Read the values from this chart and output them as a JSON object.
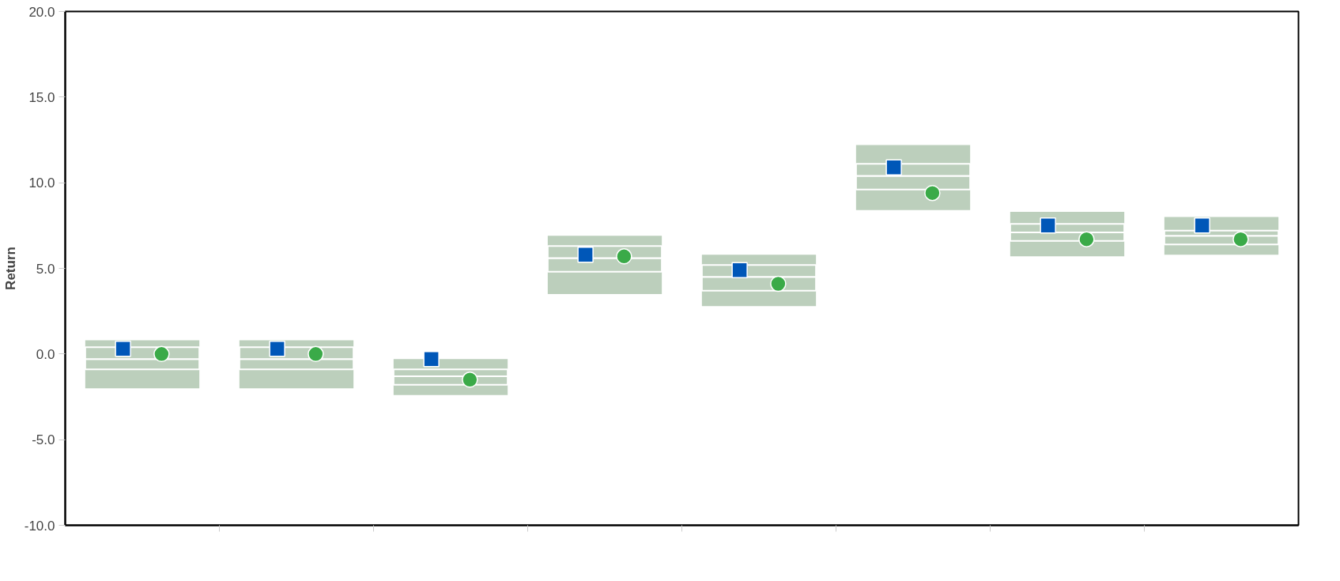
{
  "chart_data": {
    "type": "box",
    "ylabel": "Return",
    "categories": [
      null,
      null,
      null,
      null,
      null,
      null,
      null,
      null
    ],
    "color": "#bccfbc",
    "boxes": [
      {
        "low": -2.0,
        "q1": -0.9,
        "median": -0.3,
        "q3": 0.4,
        "high": 0.8
      },
      {
        "low": -2.0,
        "q1": -0.9,
        "median": -0.3,
        "q3": 0.4,
        "high": 0.8
      },
      {
        "low": -2.4,
        "q1": -1.8,
        "median": -1.3,
        "q3": -0.9,
        "high": -0.3
      },
      {
        "low": 3.5,
        "q1": 4.8,
        "median": 5.6,
        "q3": 6.3,
        "high": 6.9
      },
      {
        "low": 2.8,
        "q1": 3.7,
        "median": 4.5,
        "q3": 5.2,
        "high": 5.8
      },
      {
        "low": 8.4,
        "q1": 9.6,
        "median": 10.4,
        "q3": 11.1,
        "high": 12.2
      },
      {
        "low": 5.7,
        "q1": 6.6,
        "median": 7.1,
        "q3": 7.6,
        "high": 8.3
      },
      {
        "low": 5.8,
        "q1": 6.4,
        "median": 6.9,
        "q3": 7.2,
        "high": 8.0
      }
    ],
    "series": [
      {
        "type": "scatter",
        "marker": "square",
        "color": "#0057b8",
        "values": [
          0.3,
          0.3,
          -0.3,
          5.8,
          4.9,
          10.9,
          7.5,
          7.5
        ]
      },
      {
        "type": "scatter",
        "marker": "circle",
        "color": "#3aaa48",
        "values": [
          0.0,
          0.0,
          -1.5,
          5.7,
          4.1,
          9.4,
          6.7,
          6.7
        ]
      }
    ],
    "ylim": [
      -10,
      20
    ],
    "yticks": [
      {
        "value": -10,
        "label": "-10.0"
      },
      {
        "value": -5,
        "label": "-5.0"
      },
      {
        "value": 0,
        "label": "0.0"
      },
      {
        "value": 5,
        "label": "5.0"
      },
      {
        "value": 10,
        "label": "10.0"
      },
      {
        "value": 15,
        "label": "15.0"
      },
      {
        "value": 20,
        "label": "20.0"
      }
    ],
    "tick_labels": "y",
    "grid": false
  }
}
